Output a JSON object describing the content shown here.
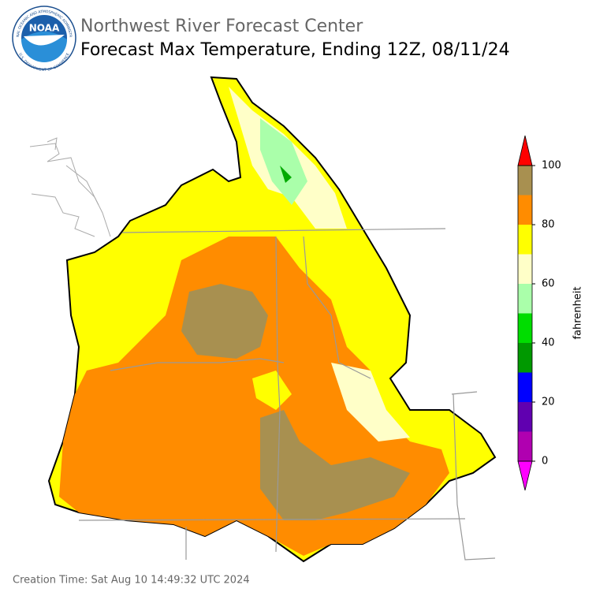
{
  "header": {
    "agency": "Northwest River Forecast Center",
    "title": "Forecast Max Temperature, Ending 12Z, 08/11/24"
  },
  "logo": {
    "name": "NOAA",
    "ring_text": "NATIONAL OCEANIC AND ATMOSPHERIC ADMINISTRATION",
    "ring_text_bottom": "U.S. DEPARTMENT OF COMMERCE"
  },
  "colorbar": {
    "label": "fahrenheit",
    "lim": [
      0,
      100
    ],
    "ticks": [
      0,
      20,
      40,
      60,
      80,
      100
    ],
    "bounds": [
      0,
      10,
      20,
      30,
      40,
      50,
      60,
      70,
      80,
      90,
      100
    ],
    "colors": [
      "#b000b0",
      "#6000b0",
      "#0000ff",
      "#009900",
      "#00dd00",
      "#aaffaa",
      "#ffffc8",
      "#ffff00",
      "#ff8c00",
      "#a89050"
    ],
    "under_color": "#ff00ff",
    "over_color": "#ff0000"
  },
  "footer": {
    "creation_time": "Creation Time: Sat Aug 10 14:49:32 UTC 2024"
  }
}
